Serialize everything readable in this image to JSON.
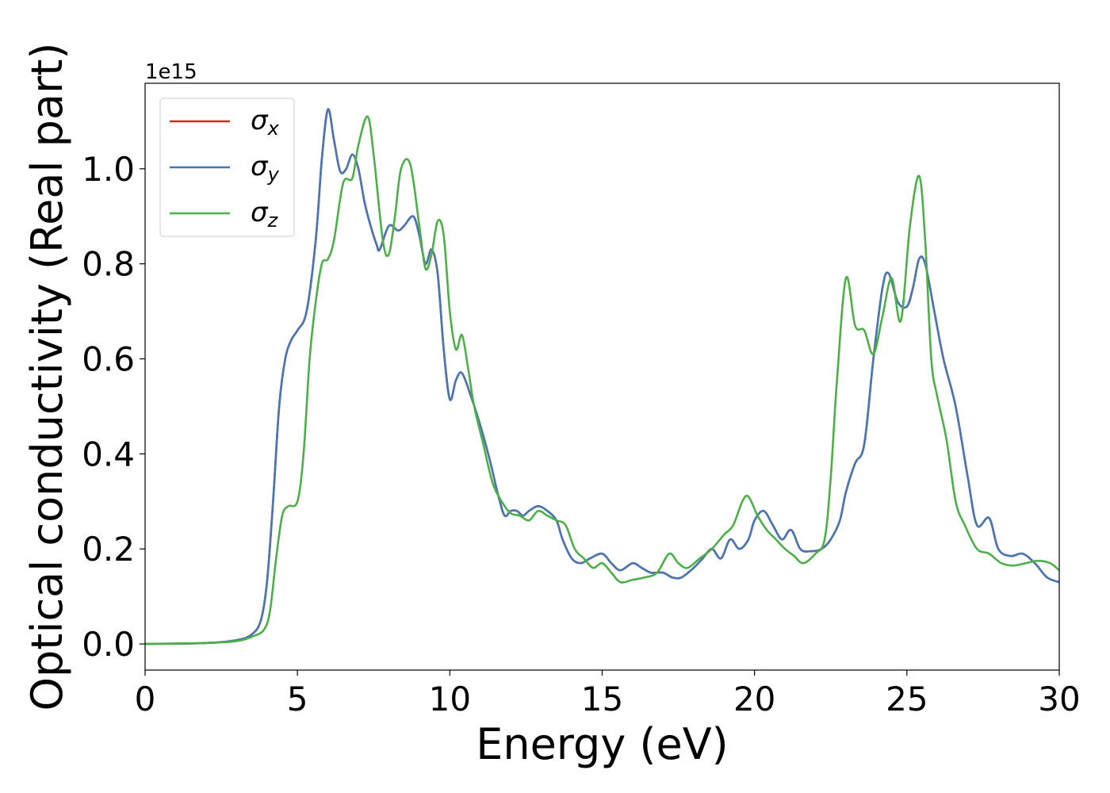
{
  "chart_data": {
    "type": "line",
    "xlabel": "Energy (eV)",
    "ylabel": "Optical conductivity (Real part)",
    "offset_text": "1e15",
    "xlim": [
      0,
      30
    ],
    "ylim": [
      -0.055,
      1.18
    ],
    "xticks": [
      0,
      5,
      10,
      15,
      20,
      25,
      30
    ],
    "xtick_labels": [
      "0",
      "5",
      "10",
      "15",
      "20",
      "25",
      "30"
    ],
    "yticks": [
      0.0,
      0.2,
      0.4,
      0.6,
      0.8,
      1.0
    ],
    "ytick_labels": [
      "0.0",
      "0.2",
      "0.4",
      "0.6",
      "0.8",
      "1.0"
    ],
    "grid": false,
    "legend_position": "top-left",
    "series": [
      {
        "name": "σx",
        "label_base": "σ",
        "label_sub": "x",
        "color": "#d62728",
        "x": [
          0,
          2,
          3,
          3.5,
          3.8,
          4.0,
          4.2,
          4.4,
          4.6,
          4.8,
          5.0,
          5.3,
          5.6,
          5.8,
          6.0,
          6.2,
          6.4,
          6.6,
          6.8,
          7.0,
          7.2,
          7.4,
          7.6,
          7.7,
          8.0,
          8.3,
          8.5,
          8.8,
          9.0,
          9.2,
          9.4,
          9.6,
          9.8,
          10.0,
          10.2,
          10.4,
          10.7,
          11.0,
          11.3,
          11.6,
          11.8,
          12.0,
          12.2,
          12.4,
          12.6,
          12.9,
          13.2,
          13.5,
          13.7,
          14.0,
          14.3,
          14.6,
          15.0,
          15.3,
          15.6,
          16.0,
          16.3,
          16.6,
          17.0,
          17.3,
          17.6,
          18.0,
          18.3,
          18.6,
          18.9,
          19.2,
          19.5,
          19.8,
          20.0,
          20.3,
          20.6,
          20.9,
          21.2,
          21.5,
          21.8,
          22.2,
          22.5,
          22.8,
          23.0,
          23.3,
          23.6,
          23.9,
          24.2,
          24.4,
          24.7,
          25.0,
          25.2,
          25.4,
          25.6,
          25.9,
          26.2,
          26.6,
          27.0,
          27.3,
          27.7,
          28.0,
          28.4,
          28.8,
          29.2,
          29.6,
          30
        ],
        "y": [
          0,
          0.002,
          0.008,
          0.02,
          0.05,
          0.13,
          0.3,
          0.5,
          0.6,
          0.64,
          0.66,
          0.7,
          0.85,
          1.02,
          1.125,
          1.06,
          0.995,
          1.0,
          1.03,
          1.0,
          0.93,
          0.88,
          0.84,
          0.83,
          0.88,
          0.87,
          0.88,
          0.9,
          0.86,
          0.8,
          0.83,
          0.78,
          0.62,
          0.515,
          0.555,
          0.57,
          0.52,
          0.46,
          0.39,
          0.31,
          0.27,
          0.28,
          0.28,
          0.27,
          0.28,
          0.29,
          0.28,
          0.26,
          0.22,
          0.18,
          0.17,
          0.18,
          0.19,
          0.17,
          0.155,
          0.17,
          0.16,
          0.15,
          0.15,
          0.14,
          0.14,
          0.16,
          0.18,
          0.2,
          0.18,
          0.22,
          0.2,
          0.22,
          0.26,
          0.28,
          0.25,
          0.22,
          0.24,
          0.2,
          0.195,
          0.2,
          0.22,
          0.26,
          0.32,
          0.38,
          0.42,
          0.6,
          0.75,
          0.78,
          0.72,
          0.71,
          0.75,
          0.81,
          0.8,
          0.7,
          0.6,
          0.5,
          0.35,
          0.25,
          0.265,
          0.2,
          0.185,
          0.19,
          0.17,
          0.14,
          0.13
        ]
      },
      {
        "name": "σy",
        "label_base": "σ",
        "label_sub": "y",
        "color": "#4878b4",
        "x": [
          0,
          2,
          3,
          3.5,
          3.8,
          4.0,
          4.2,
          4.4,
          4.6,
          4.8,
          5.0,
          5.3,
          5.6,
          5.8,
          6.0,
          6.2,
          6.4,
          6.6,
          6.8,
          7.0,
          7.2,
          7.4,
          7.6,
          7.7,
          8.0,
          8.3,
          8.5,
          8.8,
          9.0,
          9.2,
          9.4,
          9.6,
          9.8,
          10.0,
          10.2,
          10.4,
          10.7,
          11.0,
          11.3,
          11.6,
          11.8,
          12.0,
          12.2,
          12.4,
          12.6,
          12.9,
          13.2,
          13.5,
          13.7,
          14.0,
          14.3,
          14.6,
          15.0,
          15.3,
          15.6,
          16.0,
          16.3,
          16.6,
          17.0,
          17.3,
          17.6,
          18.0,
          18.3,
          18.6,
          18.9,
          19.2,
          19.5,
          19.8,
          20.0,
          20.3,
          20.6,
          20.9,
          21.2,
          21.5,
          21.8,
          22.2,
          22.5,
          22.8,
          23.0,
          23.3,
          23.6,
          23.9,
          24.2,
          24.4,
          24.7,
          25.0,
          25.2,
          25.4,
          25.6,
          25.9,
          26.2,
          26.6,
          27.0,
          27.3,
          27.7,
          28.0,
          28.4,
          28.8,
          29.2,
          29.6,
          30
        ],
        "y": [
          0,
          0.002,
          0.008,
          0.02,
          0.05,
          0.13,
          0.3,
          0.5,
          0.6,
          0.64,
          0.66,
          0.7,
          0.85,
          1.02,
          1.125,
          1.06,
          0.995,
          1.0,
          1.03,
          1.0,
          0.93,
          0.88,
          0.84,
          0.83,
          0.88,
          0.87,
          0.88,
          0.9,
          0.86,
          0.8,
          0.83,
          0.78,
          0.62,
          0.515,
          0.555,
          0.57,
          0.52,
          0.46,
          0.39,
          0.31,
          0.27,
          0.28,
          0.28,
          0.27,
          0.28,
          0.29,
          0.28,
          0.26,
          0.22,
          0.18,
          0.17,
          0.18,
          0.19,
          0.17,
          0.155,
          0.17,
          0.16,
          0.15,
          0.15,
          0.14,
          0.14,
          0.16,
          0.18,
          0.2,
          0.18,
          0.22,
          0.2,
          0.22,
          0.26,
          0.28,
          0.25,
          0.22,
          0.24,
          0.2,
          0.195,
          0.2,
          0.22,
          0.26,
          0.32,
          0.38,
          0.42,
          0.6,
          0.75,
          0.78,
          0.72,
          0.71,
          0.75,
          0.81,
          0.8,
          0.7,
          0.6,
          0.5,
          0.35,
          0.25,
          0.265,
          0.2,
          0.185,
          0.19,
          0.17,
          0.14,
          0.13
        ]
      },
      {
        "name": "σz",
        "label_base": "σ",
        "label_sub": "z",
        "color": "#4daf4a",
        "x": [
          0,
          2,
          3,
          3.5,
          3.9,
          4.1,
          4.3,
          4.5,
          4.7,
          5.0,
          5.2,
          5.4,
          5.6,
          5.8,
          6.0,
          6.2,
          6.5,
          6.8,
          7.0,
          7.3,
          7.5,
          7.8,
          8.0,
          8.2,
          8.4,
          8.7,
          9.0,
          9.2,
          9.4,
          9.6,
          9.8,
          10.0,
          10.2,
          10.4,
          10.6,
          10.8,
          11.1,
          11.4,
          11.7,
          12.0,
          12.3,
          12.6,
          12.9,
          13.2,
          13.5,
          13.8,
          14.1,
          14.4,
          14.7,
          15.0,
          15.3,
          15.6,
          16.0,
          16.4,
          16.8,
          17.2,
          17.5,
          17.8,
          18.2,
          18.6,
          19.0,
          19.3,
          19.6,
          19.8,
          20.1,
          20.4,
          20.7,
          21.0,
          21.3,
          21.6,
          22.0,
          22.3,
          22.5,
          22.7,
          23.0,
          23.3,
          23.6,
          23.9,
          24.2,
          24.5,
          24.8,
          25.1,
          25.4,
          25.6,
          25.8,
          26.0,
          26.3,
          26.6,
          26.9,
          27.3,
          27.7,
          28.1,
          28.5,
          28.9,
          29.3,
          29.7,
          30
        ],
        "y": [
          0,
          0.002,
          0.006,
          0.015,
          0.03,
          0.07,
          0.18,
          0.27,
          0.29,
          0.3,
          0.4,
          0.6,
          0.72,
          0.8,
          0.81,
          0.85,
          0.97,
          0.98,
          1.05,
          1.11,
          1.03,
          0.85,
          0.82,
          0.9,
          1.0,
          1.01,
          0.88,
          0.79,
          0.82,
          0.89,
          0.86,
          0.7,
          0.62,
          0.65,
          0.58,
          0.5,
          0.42,
          0.34,
          0.3,
          0.275,
          0.27,
          0.26,
          0.28,
          0.27,
          0.26,
          0.25,
          0.2,
          0.18,
          0.16,
          0.17,
          0.15,
          0.13,
          0.135,
          0.14,
          0.15,
          0.19,
          0.17,
          0.16,
          0.18,
          0.2,
          0.23,
          0.25,
          0.3,
          0.31,
          0.27,
          0.24,
          0.22,
          0.2,
          0.185,
          0.17,
          0.19,
          0.22,
          0.35,
          0.55,
          0.77,
          0.67,
          0.66,
          0.61,
          0.69,
          0.77,
          0.68,
          0.88,
          0.985,
          0.85,
          0.6,
          0.52,
          0.43,
          0.3,
          0.25,
          0.2,
          0.19,
          0.17,
          0.165,
          0.17,
          0.175,
          0.17,
          0.155
        ]
      }
    ]
  }
}
